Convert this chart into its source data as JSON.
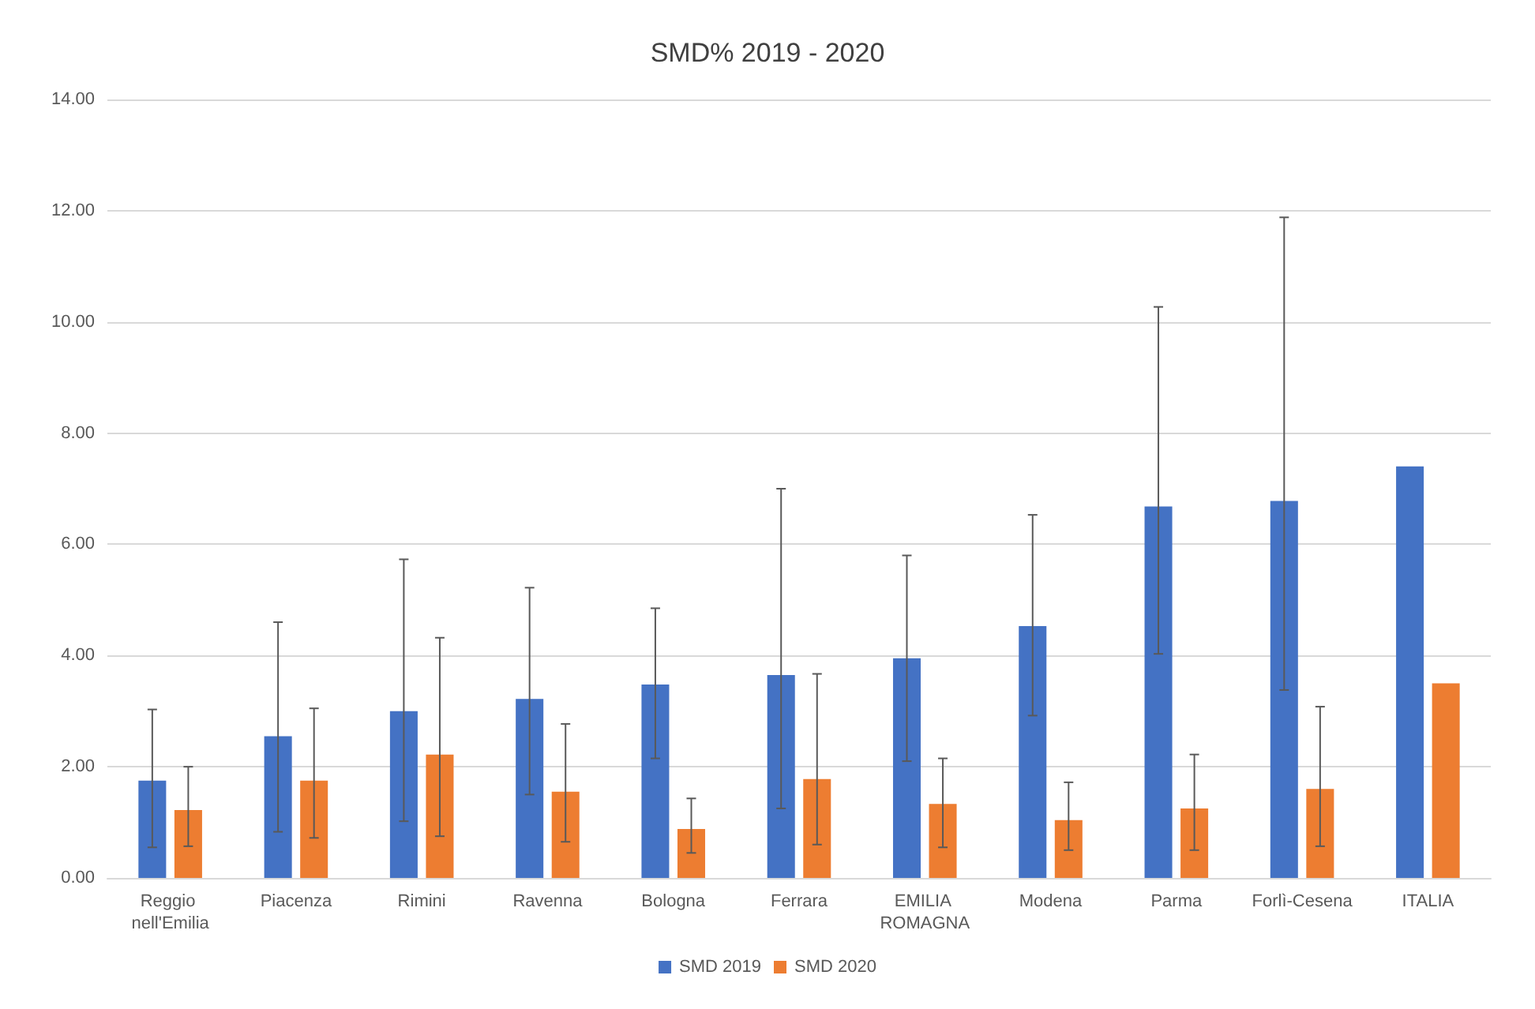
{
  "chart_data": {
    "type": "bar",
    "title": "SMD% 2019 - 2020",
    "categories": [
      "Reggio nell'Emilia",
      "Piacenza",
      "Rimini",
      "Ravenna",
      "Bologna",
      "Ferrara",
      "EMILIA ROMAGNA",
      "Modena",
      "Parma",
      "Forlì-Cesena",
      "ITALIA"
    ],
    "series": [
      {
        "name": "SMD 2019",
        "color": "#4472c4",
        "values": [
          1.75,
          2.55,
          3.0,
          3.22,
          3.48,
          3.65,
          3.95,
          4.53,
          6.68,
          6.78,
          7.4
        ],
        "errors": [
          [
            0.55,
            3.03
          ],
          [
            0.83,
            4.6
          ],
          [
            1.02,
            5.73
          ],
          [
            1.5,
            5.22
          ],
          [
            2.15,
            4.85
          ],
          [
            1.25,
            7.0
          ],
          [
            2.1,
            5.8
          ],
          [
            2.92,
            6.53
          ],
          [
            4.03,
            10.27
          ],
          [
            3.38,
            11.88
          ],
          null
        ]
      },
      {
        "name": "SMD 2020",
        "color": "#ed7d31",
        "values": [
          1.22,
          1.75,
          2.22,
          1.55,
          0.88,
          1.78,
          1.33,
          1.04,
          1.25,
          1.6,
          3.5
        ],
        "errors": [
          [
            0.57,
            2.0
          ],
          [
            0.72,
            3.05
          ],
          [
            0.75,
            4.32
          ],
          [
            0.65,
            2.77
          ],
          [
            0.45,
            1.43
          ],
          [
            0.6,
            3.67
          ],
          [
            0.55,
            2.15
          ],
          [
            0.5,
            1.72
          ],
          [
            0.5,
            2.22
          ],
          [
            0.57,
            3.08
          ],
          null
        ]
      }
    ],
    "ylim": [
      0,
      14
    ],
    "yticks": [
      {
        "value": 0,
        "label": "0.00"
      },
      {
        "value": 2,
        "label": "2.00"
      },
      {
        "value": 4,
        "label": "4.00"
      },
      {
        "value": 6,
        "label": "6.00"
      },
      {
        "value": 8,
        "label": "8.00"
      },
      {
        "value": 10,
        "label": "10.00"
      },
      {
        "value": 12,
        "label": "12.00"
      },
      {
        "value": 14,
        "label": "14.00"
      }
    ],
    "grid": "y",
    "legend": "bottom"
  }
}
